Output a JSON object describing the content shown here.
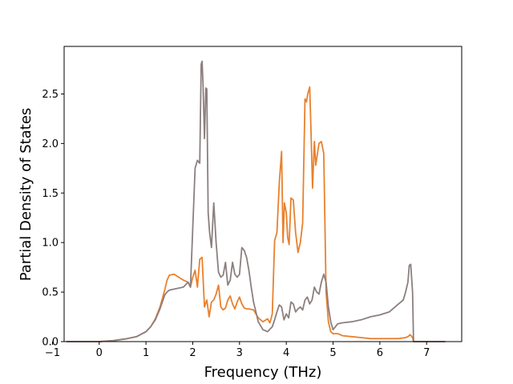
{
  "chart_data": {
    "type": "line",
    "title": "",
    "xlabel": "Frequency (THz)",
    "ylabel": "Partial Density of States",
    "xlim": [
      -0.75,
      7.75
    ],
    "ylim": [
      0.0,
      2.98
    ],
    "xticks": [
      "−1",
      "0",
      "1",
      "2",
      "3",
      "4",
      "5",
      "6",
      "7"
    ],
    "yticks": [
      "0.0",
      "0.5",
      "1.0",
      "1.5",
      "2.0",
      "2.5"
    ],
    "grid": false,
    "legend": "none",
    "series": [
      {
        "color": "#e8812d",
        "x": [
          -0.7,
          0.0,
          0.3,
          0.6,
          0.8,
          1.0,
          1.1,
          1.2,
          1.3,
          1.4,
          1.45,
          1.5,
          1.6,
          1.7,
          1.8,
          1.9,
          1.95,
          2.0,
          2.05,
          2.1,
          2.15,
          2.2,
          2.25,
          2.3,
          2.35,
          2.4,
          2.45,
          2.5,
          2.55,
          2.6,
          2.65,
          2.7,
          2.75,
          2.8,
          2.85,
          2.9,
          2.95,
          3.0,
          3.05,
          3.1,
          3.15,
          3.2,
          3.3,
          3.4,
          3.5,
          3.6,
          3.65,
          3.7,
          3.75,
          3.8,
          3.85,
          3.9,
          3.93,
          3.96,
          4.0,
          4.03,
          4.06,
          4.1,
          4.15,
          4.2,
          4.25,
          4.3,
          4.35,
          4.4,
          4.43,
          4.46,
          4.5,
          4.53,
          4.56,
          4.6,
          4.63,
          4.66,
          4.7,
          4.75,
          4.8,
          4.85,
          4.9,
          4.95,
          5.0,
          5.1,
          5.2,
          5.4,
          5.6,
          5.8,
          6.0,
          6.2,
          6.4,
          6.55,
          6.6,
          6.65,
          6.7,
          6.72,
          7.4
        ],
        "y": [
          0.0,
          0.0,
          0.01,
          0.03,
          0.05,
          0.1,
          0.15,
          0.23,
          0.35,
          0.52,
          0.62,
          0.67,
          0.68,
          0.65,
          0.62,
          0.6,
          0.55,
          0.65,
          0.72,
          0.55,
          0.83,
          0.85,
          0.35,
          0.42,
          0.25,
          0.4,
          0.42,
          0.48,
          0.57,
          0.35,
          0.32,
          0.34,
          0.42,
          0.46,
          0.38,
          0.33,
          0.4,
          0.45,
          0.38,
          0.34,
          0.33,
          0.33,
          0.32,
          0.24,
          0.2,
          0.23,
          0.19,
          0.28,
          1.02,
          1.1,
          1.6,
          1.92,
          1.0,
          1.4,
          1.3,
          1.05,
          0.98,
          1.45,
          1.43,
          1.1,
          0.9,
          1.0,
          1.2,
          2.45,
          2.42,
          2.5,
          2.57,
          2.1,
          1.55,
          2.02,
          1.78,
          1.88,
          2.0,
          2.02,
          1.9,
          0.5,
          0.2,
          0.1,
          0.08,
          0.08,
          0.06,
          0.05,
          0.04,
          0.03,
          0.03,
          0.03,
          0.03,
          0.04,
          0.05,
          0.07,
          0.04,
          0.0,
          0.0
        ]
      },
      {
        "color": "#8c7f7f",
        "x": [
          -0.7,
          0.0,
          0.3,
          0.6,
          0.8,
          1.0,
          1.1,
          1.2,
          1.3,
          1.4,
          1.45,
          1.5,
          1.6,
          1.7,
          1.8,
          1.9,
          1.95,
          2.0,
          2.05,
          2.1,
          2.15,
          2.18,
          2.2,
          2.22,
          2.25,
          2.28,
          2.3,
          2.33,
          2.36,
          2.4,
          2.45,
          2.5,
          2.55,
          2.6,
          2.65,
          2.7,
          2.75,
          2.8,
          2.85,
          2.9,
          2.95,
          3.0,
          3.05,
          3.1,
          3.15,
          3.2,
          3.25,
          3.3,
          3.4,
          3.5,
          3.6,
          3.7,
          3.75,
          3.8,
          3.85,
          3.9,
          3.95,
          4.0,
          4.05,
          4.1,
          4.15,
          4.2,
          4.25,
          4.3,
          4.35,
          4.4,
          4.45,
          4.5,
          4.55,
          4.6,
          4.65,
          4.7,
          4.75,
          4.8,
          4.85,
          4.9,
          4.95,
          5.0,
          5.1,
          5.2,
          5.4,
          5.6,
          5.8,
          6.0,
          6.2,
          6.4,
          6.5,
          6.55,
          6.6,
          6.63,
          6.66,
          6.7,
          6.72,
          7.4
        ],
        "y": [
          0.0,
          0.0,
          0.01,
          0.03,
          0.05,
          0.1,
          0.15,
          0.22,
          0.33,
          0.47,
          0.5,
          0.52,
          0.53,
          0.54,
          0.55,
          0.6,
          0.55,
          1.15,
          1.75,
          1.83,
          1.8,
          2.8,
          2.83,
          2.6,
          2.05,
          2.56,
          2.55,
          1.3,
          1.1,
          0.95,
          1.4,
          1.0,
          0.7,
          0.65,
          0.67,
          0.8,
          0.57,
          0.62,
          0.8,
          0.68,
          0.65,
          0.68,
          0.95,
          0.92,
          0.85,
          0.72,
          0.55,
          0.4,
          0.2,
          0.12,
          0.1,
          0.15,
          0.22,
          0.3,
          0.37,
          0.35,
          0.22,
          0.28,
          0.24,
          0.4,
          0.38,
          0.3,
          0.33,
          0.35,
          0.32,
          0.42,
          0.45,
          0.38,
          0.42,
          0.55,
          0.5,
          0.48,
          0.6,
          0.68,
          0.6,
          0.35,
          0.2,
          0.12,
          0.18,
          0.19,
          0.2,
          0.22,
          0.25,
          0.27,
          0.3,
          0.38,
          0.42,
          0.5,
          0.6,
          0.77,
          0.78,
          0.5,
          0.0,
          0.0
        ]
      }
    ]
  }
}
